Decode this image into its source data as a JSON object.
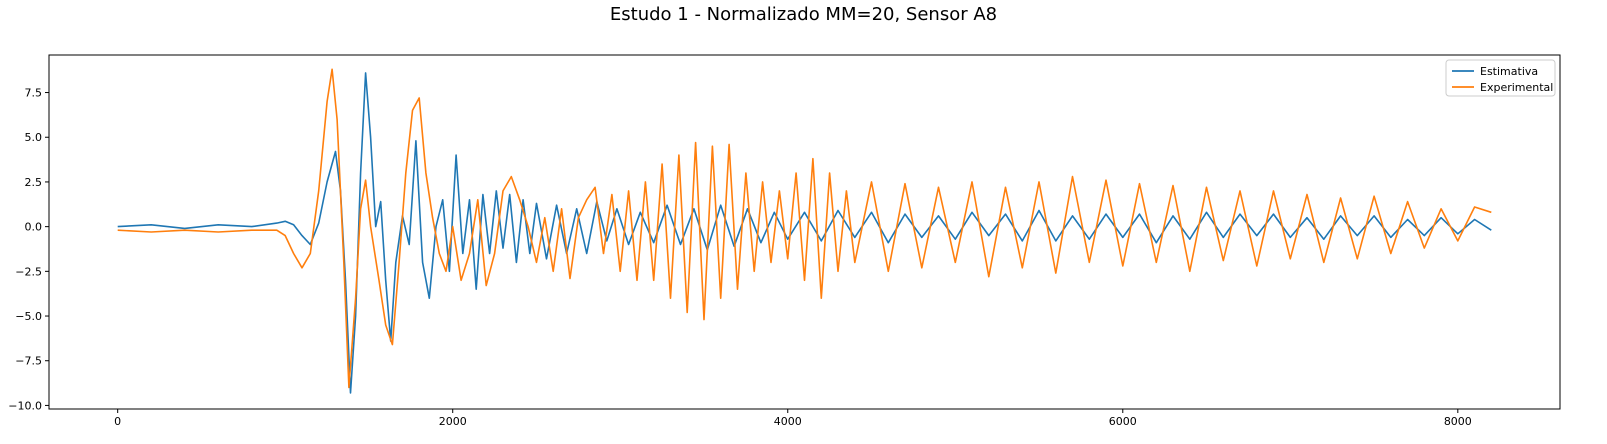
{
  "figure": {
    "title": "Estudo 1 - Normalizado MM=20, Sensor A8"
  },
  "chart_data": {
    "type": "line",
    "title": "Estudo 1 - Normalizado MM=20, Sensor A8",
    "xlabel": "",
    "ylabel": "",
    "xlim": [
      -410,
      8610
    ],
    "ylim": [
      -10.2,
      9.6
    ],
    "x_ticks": [
      0,
      2000,
      4000,
      6000,
      8000
    ],
    "x_tick_labels": [
      "0",
      "2000",
      "4000",
      "6000",
      "8000"
    ],
    "y_ticks": [
      7.5,
      5.0,
      2.5,
      0.0,
      -2.5,
      -5.0,
      -7.5,
      -10.0
    ],
    "y_tick_labels": [
      "7.5",
      "5.0",
      "2.5",
      "0.0",
      "−2.5",
      "−5.0",
      "−7.5",
      "−10.0"
    ],
    "grid": false,
    "legend_position": "top-right",
    "series": [
      {
        "name": "Estimativa",
        "color": "#1f77b4",
        "x": [
          0,
          200,
          400,
          600,
          800,
          950,
          1000,
          1050,
          1100,
          1150,
          1200,
          1250,
          1300,
          1330,
          1360,
          1390,
          1420,
          1450,
          1480,
          1510,
          1540,
          1570,
          1600,
          1630,
          1660,
          1700,
          1740,
          1780,
          1820,
          1860,
          1900,
          1940,
          1980,
          2020,
          2060,
          2100,
          2140,
          2180,
          2220,
          2260,
          2300,
          2340,
          2380,
          2420,
          2460,
          2500,
          2560,
          2620,
          2680,
          2740,
          2800,
          2860,
          2920,
          2980,
          3050,
          3120,
          3200,
          3280,
          3360,
          3440,
          3520,
          3600,
          3680,
          3760,
          3840,
          3920,
          4000,
          4100,
          4200,
          4300,
          4400,
          4500,
          4600,
          4700,
          4800,
          4900,
          5000,
          5100,
          5200,
          5300,
          5400,
          5500,
          5600,
          5700,
          5800,
          5900,
          6000,
          6100,
          6200,
          6300,
          6400,
          6500,
          6600,
          6700,
          6800,
          6900,
          7000,
          7100,
          7200,
          7300,
          7400,
          7500,
          7600,
          7700,
          7800,
          7900,
          8000,
          8100,
          8200
        ],
        "y": [
          0.0,
          0.1,
          -0.1,
          0.1,
          0.0,
          0.2,
          0.3,
          0.1,
          -0.5,
          -1.0,
          0.2,
          2.5,
          4.2,
          2.0,
          -3.0,
          -9.3,
          -5.0,
          3.0,
          8.6,
          5.0,
          0.0,
          1.4,
          -3.0,
          -6.4,
          -2.0,
          0.6,
          -1.0,
          4.8,
          -2.0,
          -4.0,
          0.0,
          1.5,
          -2.5,
          4.0,
          -1.5,
          1.5,
          -3.5,
          1.8,
          -1.5,
          2.0,
          -1.2,
          1.8,
          -2.0,
          1.5,
          -1.5,
          1.3,
          -1.8,
          1.2,
          -1.5,
          1.0,
          -1.5,
          1.4,
          -0.8,
          1.0,
          -1.0,
          0.8,
          -0.9,
          1.2,
          -1.0,
          1.0,
          -1.3,
          1.2,
          -1.1,
          1.0,
          -0.9,
          0.8,
          -0.7,
          0.8,
          -0.8,
          0.9,
          -0.6,
          0.8,
          -0.9,
          0.7,
          -0.6,
          0.6,
          -0.7,
          0.8,
          -0.5,
          0.7,
          -0.8,
          0.9,
          -0.8,
          0.6,
          -0.7,
          0.7,
          -0.6,
          0.7,
          -0.9,
          0.6,
          -0.7,
          0.8,
          -0.6,
          0.7,
          -0.5,
          0.7,
          -0.6,
          0.5,
          -0.7,
          0.6,
          -0.5,
          0.6,
          -0.6,
          0.4,
          -0.5,
          0.5,
          -0.4,
          0.4,
          -0.2
        ]
      },
      {
        "name": "Experimental",
        "color": "#ff7f0e",
        "x": [
          0,
          200,
          400,
          600,
          800,
          950,
          1000,
          1050,
          1100,
          1150,
          1200,
          1250,
          1280,
          1310,
          1350,
          1380,
          1420,
          1450,
          1480,
          1510,
          1560,
          1600,
          1640,
          1680,
          1720,
          1760,
          1800,
          1840,
          1880,
          1920,
          1960,
          2000,
          2050,
          2100,
          2150,
          2200,
          2250,
          2300,
          2350,
          2400,
          2450,
          2500,
          2550,
          2600,
          2650,
          2700,
          2750,
          2800,
          2850,
          2900,
          2950,
          3000,
          3050,
          3100,
          3150,
          3200,
          3250,
          3300,
          3350,
          3400,
          3450,
          3500,
          3550,
          3600,
          3650,
          3700,
          3750,
          3800,
          3850,
          3900,
          3950,
          4000,
          4050,
          4100,
          4150,
          4200,
          4250,
          4300,
          4350,
          4400,
          4500,
          4600,
          4700,
          4800,
          4900,
          5000,
          5100,
          5200,
          5300,
          5400,
          5500,
          5600,
          5700,
          5800,
          5900,
          6000,
          6100,
          6200,
          6300,
          6400,
          6500,
          6600,
          6700,
          6800,
          6900,
          7000,
          7100,
          7200,
          7300,
          7400,
          7500,
          7600,
          7700,
          7800,
          7900,
          8000,
          8100,
          8200
        ],
        "y": [
          -0.2,
          -0.3,
          -0.2,
          -0.3,
          -0.2,
          -0.2,
          -0.5,
          -1.5,
          -2.3,
          -1.5,
          2.0,
          7.0,
          8.8,
          6.0,
          -2.0,
          -9.0,
          -4.0,
          1.0,
          2.6,
          0.0,
          -3.0,
          -5.5,
          -6.6,
          -2.0,
          3.0,
          6.5,
          7.2,
          3.0,
          0.5,
          -1.5,
          -2.5,
          0.0,
          -3.0,
          -1.5,
          1.5,
          -3.3,
          -1.5,
          2.0,
          2.8,
          1.5,
          0.0,
          -2.0,
          0.5,
          -2.5,
          1.0,
          -2.9,
          0.5,
          1.5,
          2.2,
          -1.5,
          1.8,
          -2.5,
          2.0,
          -3.0,
          2.5,
          -3.0,
          3.5,
          -4.0,
          4.0,
          -4.8,
          4.7,
          -5.2,
          4.5,
          -4.0,
          4.6,
          -3.5,
          3.0,
          -2.5,
          2.5,
          -2.0,
          2.0,
          -1.8,
          3.0,
          -3.0,
          3.8,
          -4.0,
          3.0,
          -2.5,
          2.0,
          -2.0,
          2.5,
          -2.5,
          2.4,
          -2.3,
          2.2,
          -2.0,
          2.5,
          -2.8,
          2.2,
          -2.3,
          2.5,
          -2.6,
          2.8,
          -2.0,
          2.6,
          -2.2,
          2.4,
          -2.0,
          2.3,
          -2.5,
          2.2,
          -1.9,
          2.0,
          -2.2,
          2.0,
          -1.8,
          1.8,
          -2.0,
          1.6,
          -1.8,
          1.7,
          -1.5,
          1.4,
          -1.2,
          1.0,
          -0.8,
          1.1,
          0.8
        ]
      }
    ]
  }
}
